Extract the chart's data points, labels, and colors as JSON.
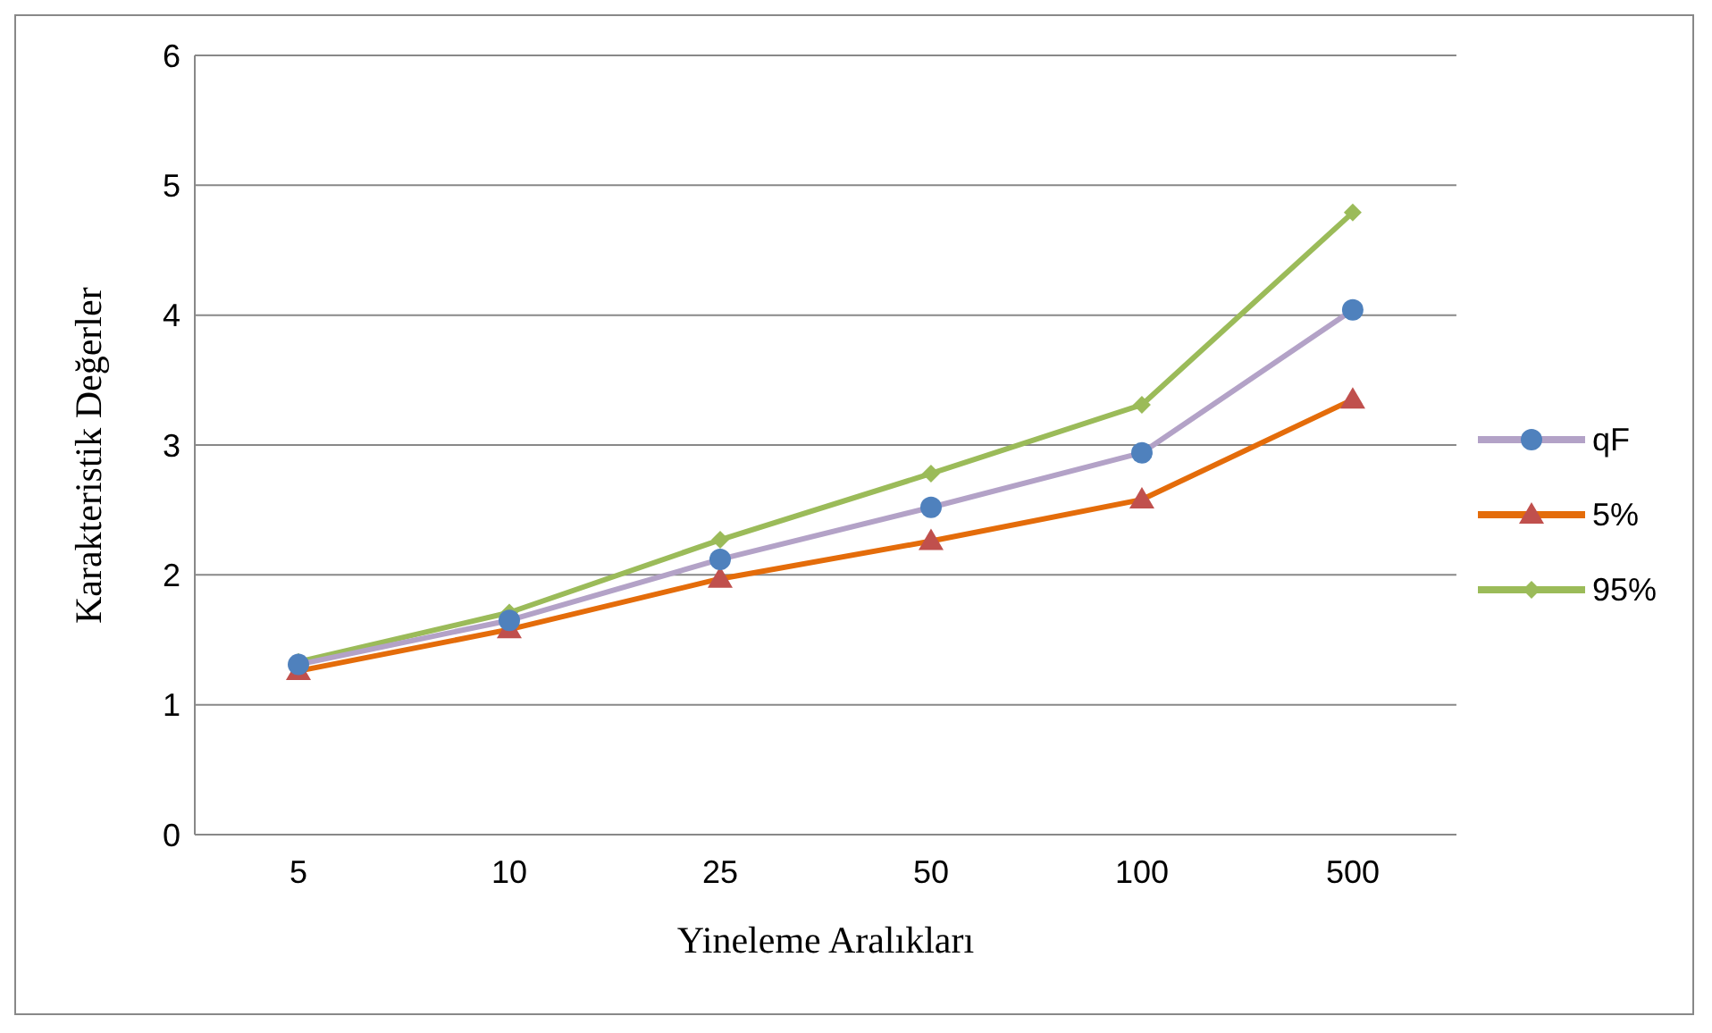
{
  "chart_data": {
    "type": "line",
    "xlabel": "Yineleme Aralıkları",
    "ylabel": "Karakteristik Değerler",
    "categories": [
      "5",
      "10",
      "25",
      "50",
      "100",
      "500"
    ],
    "ylim": [
      0,
      6
    ],
    "yticks": [
      0,
      1,
      2,
      3,
      4,
      5,
      6
    ],
    "grid": "y",
    "legend": "right",
    "line_style": "solid",
    "series": [
      {
        "name": "qF",
        "color": "#b3a2c7",
        "colors": [
          "#4f81bd",
          "#4f81bd",
          "#4f81bd",
          "#4f81bd",
          "#4f81bd",
          "#4f81bd"
        ],
        "marker": "circle",
        "values": [
          1.31,
          1.65,
          2.12,
          2.52,
          2.94,
          4.04
        ]
      },
      {
        "name": "5%",
        "color": "#e46c0a",
        "colors": [
          "#c0504d",
          "#c0504d",
          "#c0504d",
          "#c0504d",
          "#c0504d",
          "#c0504d"
        ],
        "marker": "triangle",
        "values": [
          1.26,
          1.58,
          1.97,
          2.26,
          2.58,
          3.35
        ]
      },
      {
        "name": "95%",
        "color": "#9bbb59",
        "colors": [
          "#9bbb59",
          "#9bbb59",
          "#9bbb59",
          "#9bbb59",
          "#9bbb59",
          "#9bbb59"
        ],
        "marker": "diamond",
        "values": [
          1.33,
          1.71,
          2.27,
          2.78,
          3.31,
          4.79
        ]
      }
    ]
  }
}
